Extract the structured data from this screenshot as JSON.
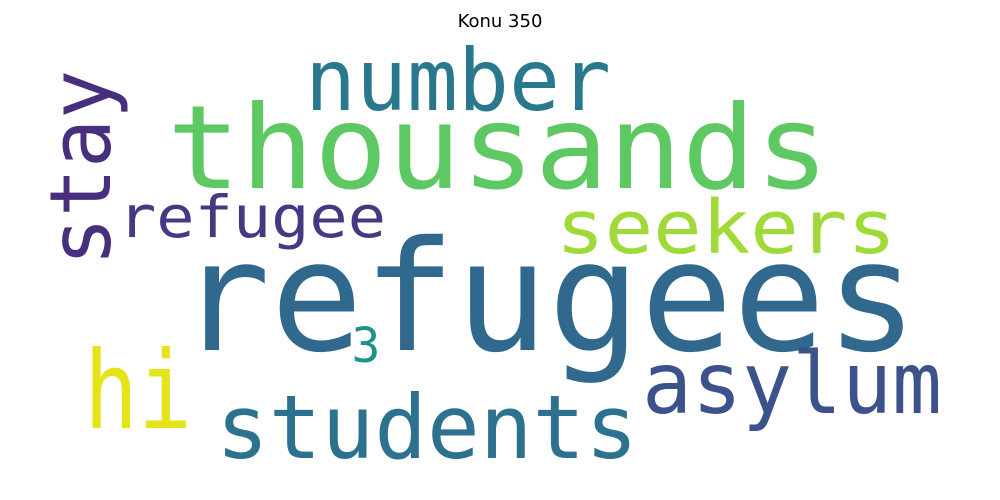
{
  "title": "Konu 350",
  "words": [
    {
      "text": "refugees",
      "color": "#31688e",
      "rank": 1
    },
    {
      "text": "thousands",
      "color": "#5ec962",
      "rank": 2
    },
    {
      "text": "number",
      "color": "#2a788e",
      "rank": 3
    },
    {
      "text": "students",
      "color": "#2c728e",
      "rank": 4
    },
    {
      "text": "asylum",
      "color": "#3b528b",
      "rank": 5
    },
    {
      "text": "hi",
      "color": "#e5e419",
      "rank": 6
    },
    {
      "text": "stay",
      "color": "#472f7d",
      "rank": 7
    },
    {
      "text": "seekers",
      "color": "#a0da39",
      "rank": 8
    },
    {
      "text": "refugee",
      "color": "#443983",
      "rank": 9
    },
    {
      "text": "3",
      "color": "#21918c",
      "rank": 10
    }
  ]
}
